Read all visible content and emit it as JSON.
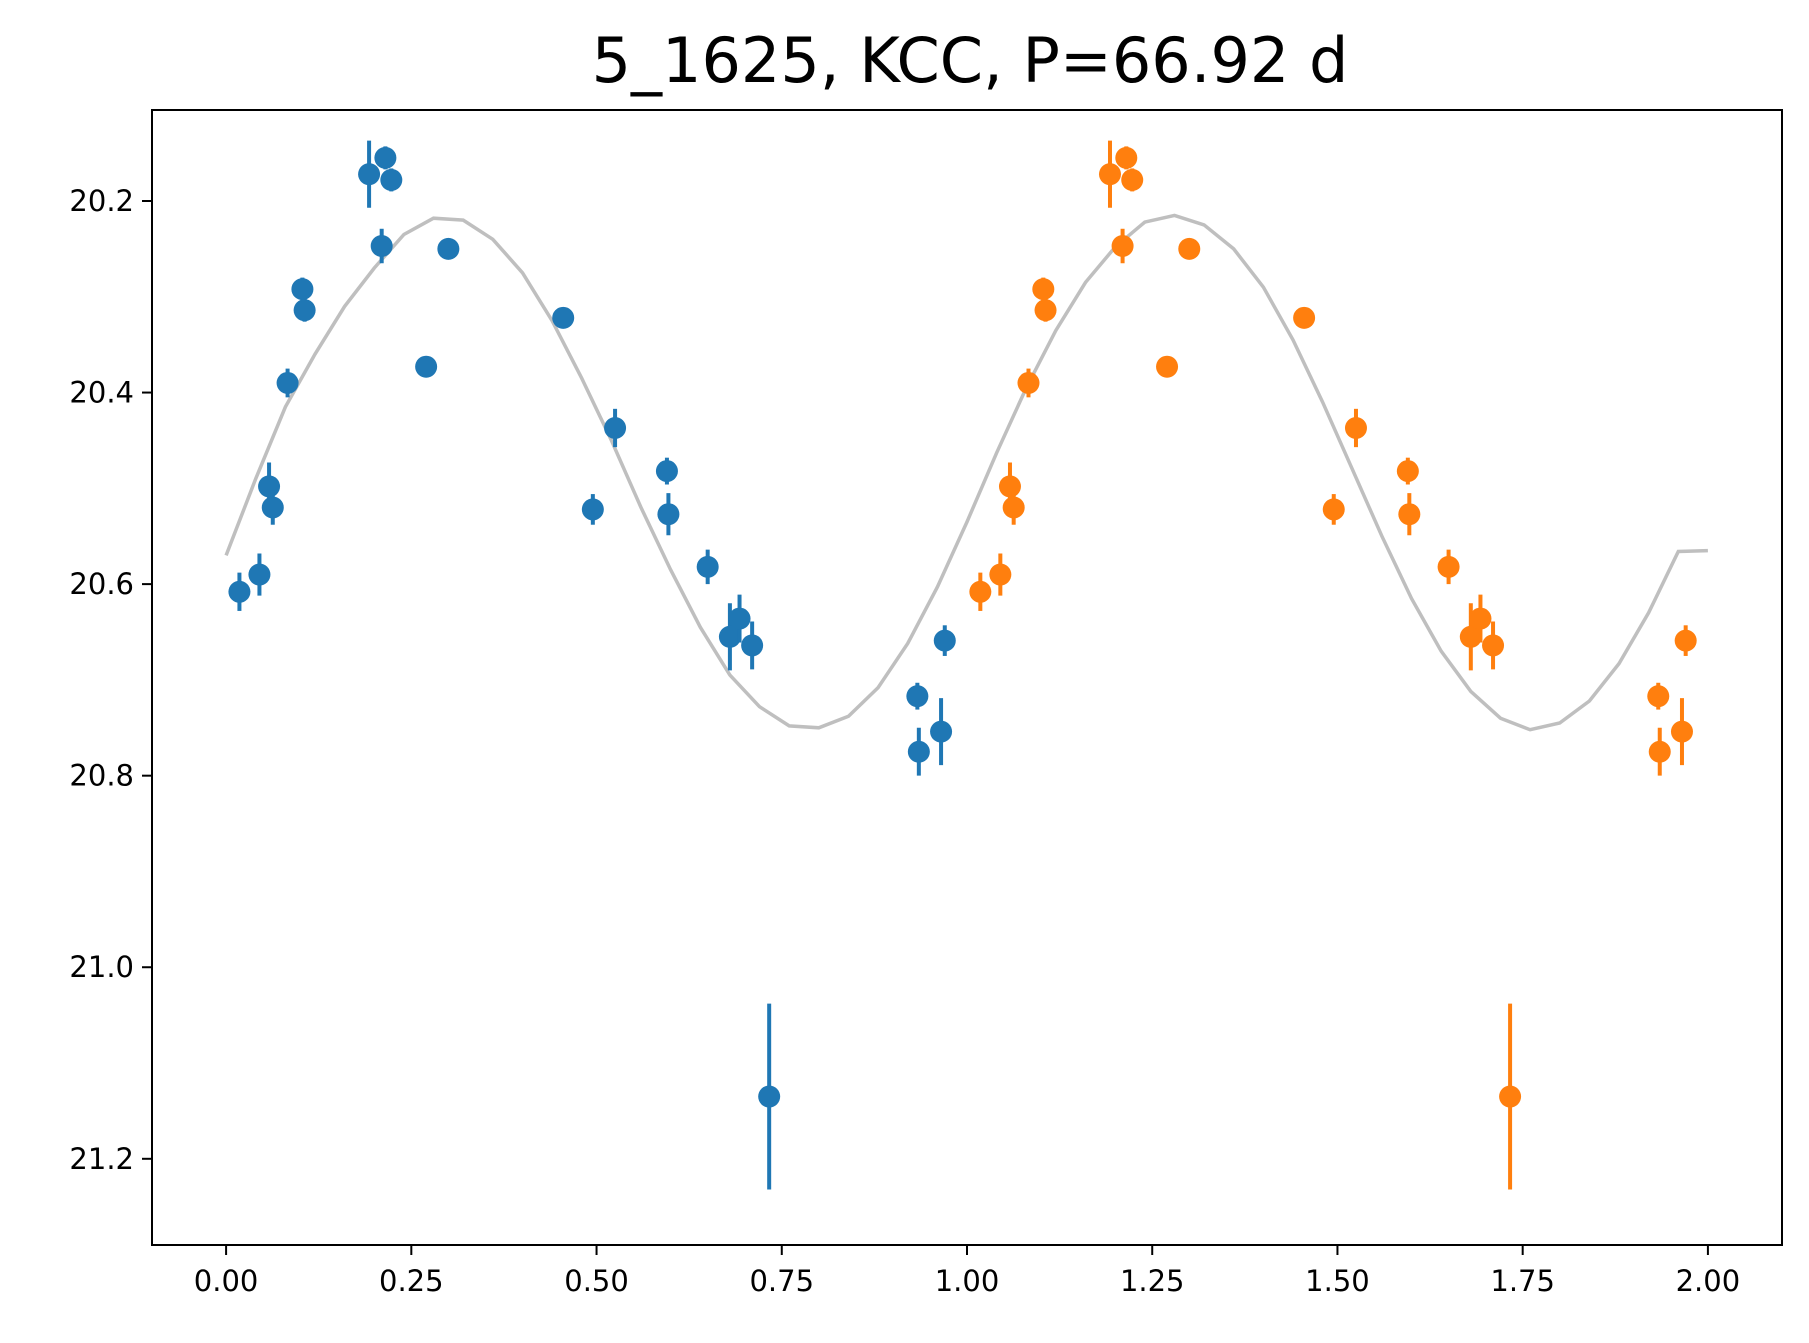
{
  "chart_data": {
    "type": "scatter",
    "title": "5_1625, KCC, P=66.92 d",
    "xlabel": "",
    "ylabel": "",
    "xlim": [
      -0.1,
      2.1
    ],
    "ylim": [
      21.29,
      20.105
    ],
    "y_inverted": true,
    "grid": false,
    "x_ticks": [
      {
        "value": 0.0,
        "label": "0.00"
      },
      {
        "value": 0.25,
        "label": "0.25"
      },
      {
        "value": 0.5,
        "label": "0.50"
      },
      {
        "value": 0.75,
        "label": "0.75"
      },
      {
        "value": 1.0,
        "label": "1.00"
      },
      {
        "value": 1.25,
        "label": "1.25"
      },
      {
        "value": 1.5,
        "label": "1.50"
      },
      {
        "value": 1.75,
        "label": "1.75"
      },
      {
        "value": 2.0,
        "label": "2.00"
      }
    ],
    "y_ticks": [
      {
        "value": 20.2,
        "label": "20.2"
      },
      {
        "value": 20.4,
        "label": "20.4"
      },
      {
        "value": 20.6,
        "label": "20.6"
      },
      {
        "value": 20.8,
        "label": "20.8"
      },
      {
        "value": 21.0,
        "label": "21.0"
      },
      {
        "value": 21.2,
        "label": "21.2"
      }
    ],
    "model_curve": {
      "color": "#bfbfbf",
      "x": [
        0.0,
        0.04,
        0.08,
        0.12,
        0.16,
        0.2,
        0.24,
        0.28,
        0.32,
        0.36,
        0.4,
        0.44,
        0.48,
        0.52,
        0.56,
        0.6,
        0.64,
        0.68,
        0.72,
        0.76,
        0.8,
        0.84,
        0.88,
        0.92,
        0.96,
        1.0,
        1.04,
        1.08,
        1.12,
        1.16,
        1.2,
        1.24,
        1.28,
        1.32,
        1.36,
        1.4,
        1.44,
        1.48,
        1.52,
        1.56,
        1.6,
        1.64,
        1.68,
        1.72,
        1.76,
        1.8,
        1.84,
        1.88,
        1.92,
        1.96,
        2.0
      ],
      "y": [
        20.57,
        20.49,
        20.415,
        20.36,
        20.31,
        20.27,
        20.235,
        20.218,
        20.22,
        20.24,
        20.275,
        20.325,
        20.385,
        20.45,
        20.52,
        20.585,
        20.645,
        20.695,
        20.728,
        20.748,
        20.75,
        20.738,
        20.708,
        20.662,
        20.603,
        20.535,
        20.463,
        20.395,
        20.335,
        20.285,
        20.248,
        20.222,
        20.215,
        20.225,
        20.25,
        20.29,
        20.345,
        20.41,
        20.48,
        20.55,
        20.615,
        20.67,
        20.712,
        20.74,
        20.752,
        20.745,
        20.722,
        20.683,
        20.63,
        20.566,
        20.565
      ]
    },
    "series": [
      {
        "color": "#1f77b4",
        "points": [
          {
            "x": 0.018,
            "y": 20.608,
            "err": 0.02
          },
          {
            "x": 0.045,
            "y": 20.59,
            "err": 0.022
          },
          {
            "x": 0.058,
            "y": 20.498,
            "err": 0.025
          },
          {
            "x": 0.063,
            "y": 20.52,
            "err": 0.018
          },
          {
            "x": 0.083,
            "y": 20.39,
            "err": 0.015
          },
          {
            "x": 0.103,
            "y": 20.292,
            "err": 0.012
          },
          {
            "x": 0.106,
            "y": 20.314,
            "err": 0.012
          },
          {
            "x": 0.193,
            "y": 20.172,
            "err": 0.035
          },
          {
            "x": 0.21,
            "y": 20.247,
            "err": 0.018
          },
          {
            "x": 0.215,
            "y": 20.155,
            "err": 0.012
          },
          {
            "x": 0.223,
            "y": 20.178,
            "err": 0.012
          },
          {
            "x": 0.27,
            "y": 20.373,
            "err": 0.008
          },
          {
            "x": 0.3,
            "y": 20.25,
            "err": 0.01
          },
          {
            "x": 0.455,
            "y": 20.322,
            "err": 0.008
          },
          {
            "x": 0.495,
            "y": 20.522,
            "err": 0.016
          },
          {
            "x": 0.525,
            "y": 20.437,
            "err": 0.02
          },
          {
            "x": 0.595,
            "y": 20.482,
            "err": 0.014
          },
          {
            "x": 0.597,
            "y": 20.527,
            "err": 0.022
          },
          {
            "x": 0.65,
            "y": 20.582,
            "err": 0.018
          },
          {
            "x": 0.68,
            "y": 20.655,
            "err": 0.035
          },
          {
            "x": 0.693,
            "y": 20.636,
            "err": 0.025
          },
          {
            "x": 0.71,
            "y": 20.664,
            "err": 0.025
          },
          {
            "x": 0.733,
            "y": 21.135,
            "err": 0.097
          },
          {
            "x": 0.933,
            "y": 20.717,
            "err": 0.014
          },
          {
            "x": 0.935,
            "y": 20.775,
            "err": 0.025
          },
          {
            "x": 0.965,
            "y": 20.754,
            "err": 0.035
          },
          {
            "x": 0.97,
            "y": 20.659,
            "err": 0.016
          }
        ]
      },
      {
        "color": "#ff7f0e",
        "points": [
          {
            "x": 1.018,
            "y": 20.608,
            "err": 0.02
          },
          {
            "x": 1.045,
            "y": 20.59,
            "err": 0.022
          },
          {
            "x": 1.058,
            "y": 20.498,
            "err": 0.025
          },
          {
            "x": 1.063,
            "y": 20.52,
            "err": 0.018
          },
          {
            "x": 1.083,
            "y": 20.39,
            "err": 0.015
          },
          {
            "x": 1.103,
            "y": 20.292,
            "err": 0.012
          },
          {
            "x": 1.106,
            "y": 20.314,
            "err": 0.012
          },
          {
            "x": 1.193,
            "y": 20.172,
            "err": 0.035
          },
          {
            "x": 1.21,
            "y": 20.247,
            "err": 0.018
          },
          {
            "x": 1.215,
            "y": 20.155,
            "err": 0.012
          },
          {
            "x": 1.223,
            "y": 20.178,
            "err": 0.012
          },
          {
            "x": 1.27,
            "y": 20.373,
            "err": 0.008
          },
          {
            "x": 1.3,
            "y": 20.25,
            "err": 0.01
          },
          {
            "x": 1.455,
            "y": 20.322,
            "err": 0.008
          },
          {
            "x": 1.495,
            "y": 20.522,
            "err": 0.016
          },
          {
            "x": 1.525,
            "y": 20.437,
            "err": 0.02
          },
          {
            "x": 1.595,
            "y": 20.482,
            "err": 0.014
          },
          {
            "x": 1.597,
            "y": 20.527,
            "err": 0.022
          },
          {
            "x": 1.65,
            "y": 20.582,
            "err": 0.018
          },
          {
            "x": 1.68,
            "y": 20.655,
            "err": 0.035
          },
          {
            "x": 1.693,
            "y": 20.636,
            "err": 0.025
          },
          {
            "x": 1.71,
            "y": 20.664,
            "err": 0.025
          },
          {
            "x": 1.733,
            "y": 21.135,
            "err": 0.097
          },
          {
            "x": 1.933,
            "y": 20.717,
            "err": 0.014
          },
          {
            "x": 1.935,
            "y": 20.775,
            "err": 0.025
          },
          {
            "x": 1.965,
            "y": 20.754,
            "err": 0.035
          },
          {
            "x": 1.97,
            "y": 20.659,
            "err": 0.016
          }
        ]
      }
    ]
  }
}
